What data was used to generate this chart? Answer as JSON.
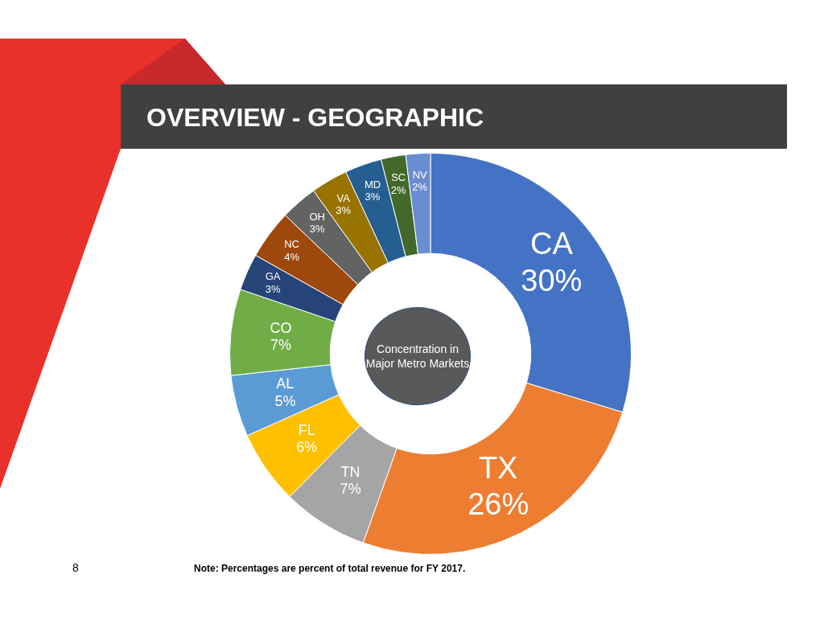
{
  "chart_data": {
    "type": "donut",
    "title": "OVERVIEW - GEOGRAPHIC",
    "categories": [
      "CA",
      "TX",
      "TN",
      "FL",
      "AL",
      "CO",
      "GA",
      "NC",
      "OH",
      "VA",
      "MD",
      "SC",
      "NV"
    ],
    "values": [
      30,
      26,
      7,
      6,
      5,
      7,
      3,
      4,
      3,
      3,
      3,
      2,
      2
    ],
    "colors": [
      "#4472c4",
      "#ed7d31",
      "#a5a5a5",
      "#ffc000",
      "#5b9bd5",
      "#70ad47",
      "#264478",
      "#9e480e",
      "#636363",
      "#997300",
      "#255e91",
      "#43682b",
      "#698ed0"
    ],
    "value_labels": [
      "30%",
      "26%",
      "7%",
      "6%",
      "5%",
      "7%",
      "3%",
      "4%",
      "3%",
      "3%",
      "3%",
      "2%",
      "2%"
    ],
    "annotations": [
      "Concentration in Major Metro Markets",
      "Note: Percentages are percent of total revenue for FY 2017.",
      "8"
    ]
  }
}
